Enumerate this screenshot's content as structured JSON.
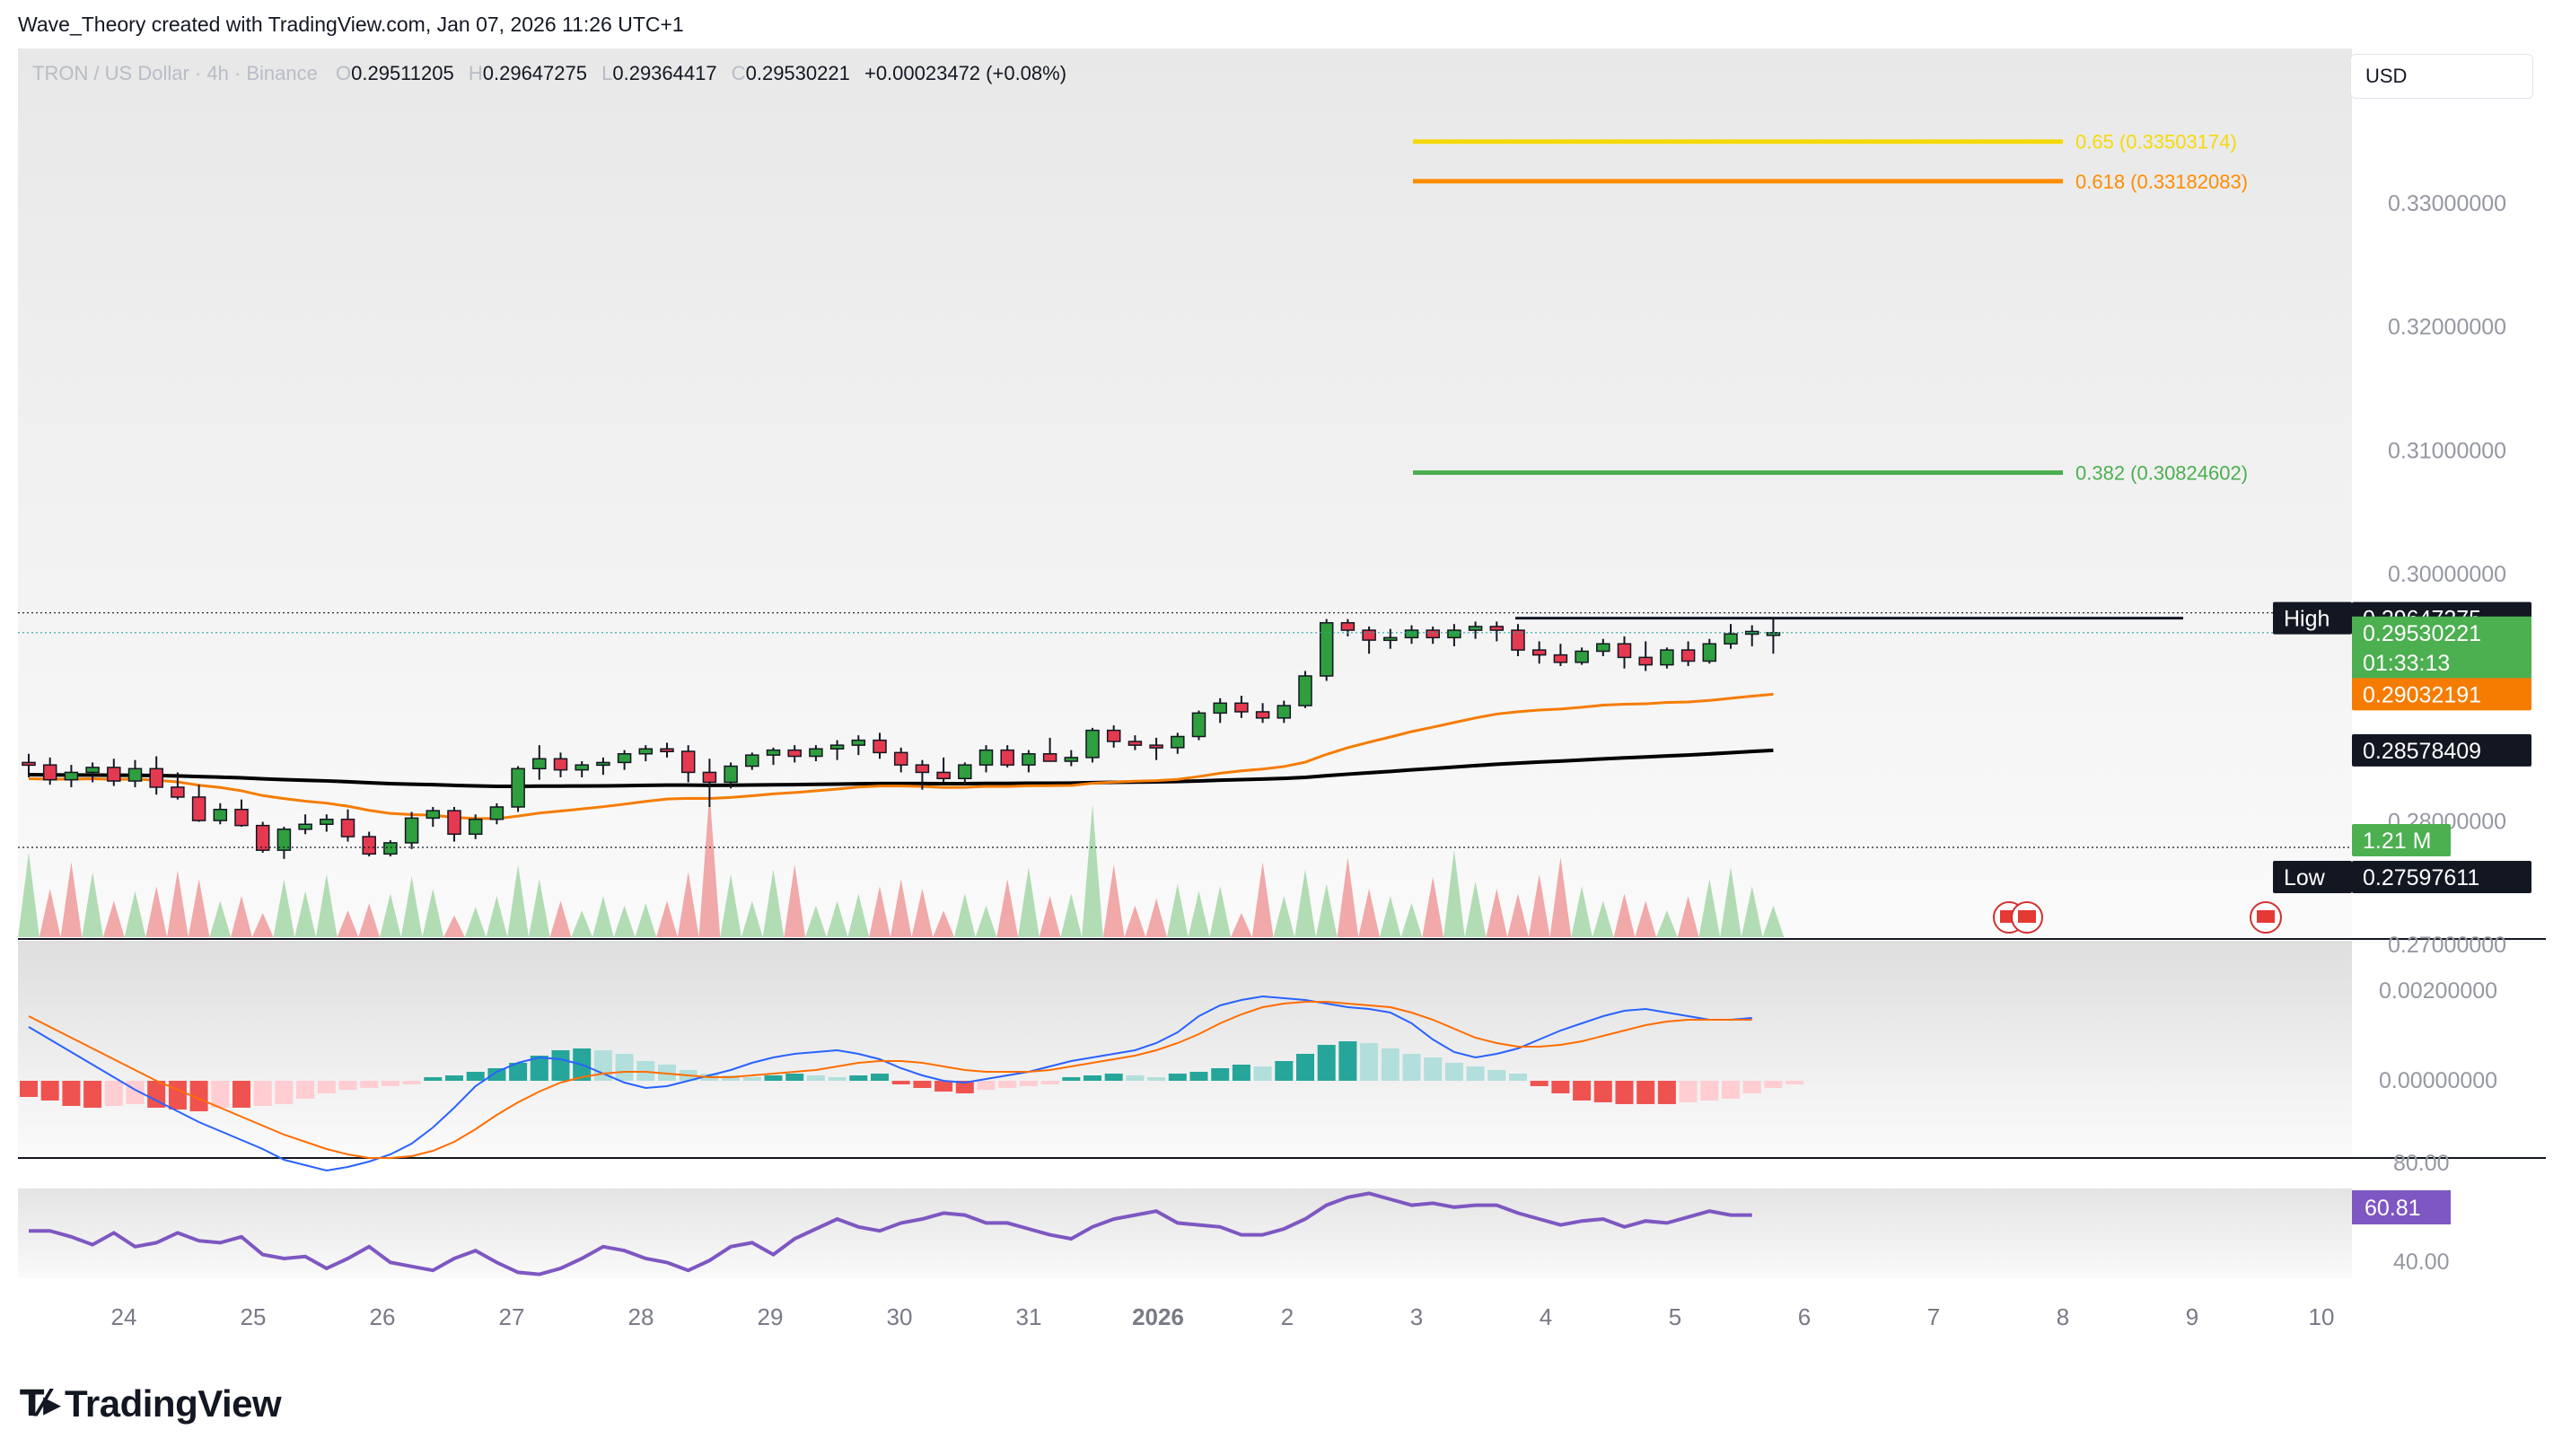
{
  "attribution": "Wave_Theory created with TradingView.com, Jan 07, 2026 11:26 UTC+1",
  "header": {
    "symbol": "TRON / US Dollar · 4h · Binance",
    "open_label": "O",
    "open": "0.29511205",
    "high_label": "H",
    "high": "0.29647275",
    "low_label": "L",
    "low": "0.29364417",
    "close_label": "C",
    "close": "0.29530221",
    "change": "+0.00023472 (+0.08%)"
  },
  "currency": "USD",
  "brand": {
    "logo_icon": "tradingview-logo-icon",
    "name": "TradingView"
  },
  "colors": {
    "up": "#26a69a",
    "down": "#ef5350",
    "candle_up": "#2e9e3e",
    "candle_down": "#e53950",
    "ema_fast": "#f57c00",
    "ema_slow": "#000000",
    "fib_382": "#4caf50",
    "fib_618": "#ff8c00",
    "fib_65": "#f5d90a",
    "macd": "#2962ff",
    "macd_signal": "#ff6d00",
    "rsi": "#7e57c2",
    "vol_up": "#a5d6a7",
    "vol_down": "#ef9a9a"
  },
  "price_scale": {
    "ticks": [
      "0.33000000",
      "0.32000000",
      "0.31000000",
      "0.30000000",
      "0.28000000",
      "0.27000000"
    ],
    "high_label": "High",
    "high_value": "0.29647275",
    "last_price": "0.29530221",
    "countdown": "01:33:13",
    "ema_fast_value": "0.29032191",
    "ema_slow_value": "0.28578409",
    "volume_value": "1.21 M",
    "low_label": "Low",
    "low_value": "0.27597611"
  },
  "fib_levels": [
    {
      "label": "0.382 (0.30824602)",
      "level": 0.30824602,
      "color": "#4caf50"
    },
    {
      "label": "0.618 (0.33182083)",
      "level": 0.33182083,
      "color": "#ff8c00"
    },
    {
      "label": "0.65 (0.33503174)",
      "level": 0.33503174,
      "color": "#f5d90a"
    }
  ],
  "macd_scale": {
    "ticks": [
      "0.00200000",
      "0.00000000"
    ]
  },
  "rsi_scale": {
    "ticks": [
      "80.00",
      "40.00"
    ],
    "value": "60.81"
  },
  "time_axis": {
    "labels": [
      "24",
      "25",
      "26",
      "27",
      "28",
      "29",
      "30",
      "31",
      "2026",
      "2",
      "3",
      "4",
      "5",
      "6",
      "7",
      "8",
      "9",
      "10"
    ]
  },
  "chart_data": {
    "type": "candlestick",
    "title": "TRON / US Dollar · 4h · Binance",
    "interval": "4h",
    "ylim": [
      0.2675,
      0.3375
    ],
    "candles": [
      {
        "o": 0.2848,
        "h": 0.2855,
        "l": 0.2836,
        "c": 0.2846
      },
      {
        "o": 0.2846,
        "h": 0.2852,
        "l": 0.283,
        "c": 0.2834
      },
      {
        "o": 0.2834,
        "h": 0.2846,
        "l": 0.2828,
        "c": 0.284
      },
      {
        "o": 0.284,
        "h": 0.2848,
        "l": 0.2832,
        "c": 0.2844
      },
      {
        "o": 0.2844,
        "h": 0.2851,
        "l": 0.2829,
        "c": 0.2833
      },
      {
        "o": 0.2833,
        "h": 0.285,
        "l": 0.2828,
        "c": 0.2843
      },
      {
        "o": 0.2843,
        "h": 0.2853,
        "l": 0.2822,
        "c": 0.2828
      },
      {
        "o": 0.2828,
        "h": 0.284,
        "l": 0.2818,
        "c": 0.282
      },
      {
        "o": 0.282,
        "h": 0.283,
        "l": 0.28,
        "c": 0.2801
      },
      {
        "o": 0.2801,
        "h": 0.2815,
        "l": 0.2798,
        "c": 0.281
      },
      {
        "o": 0.281,
        "h": 0.2818,
        "l": 0.2796,
        "c": 0.2797
      },
      {
        "o": 0.2797,
        "h": 0.28,
        "l": 0.2775,
        "c": 0.2777
      },
      {
        "o": 0.2777,
        "h": 0.2796,
        "l": 0.277,
        "c": 0.2794
      },
      {
        "o": 0.2794,
        "h": 0.2806,
        "l": 0.279,
        "c": 0.2798
      },
      {
        "o": 0.2798,
        "h": 0.2806,
        "l": 0.2792,
        "c": 0.2802
      },
      {
        "o": 0.2802,
        "h": 0.281,
        "l": 0.2784,
        "c": 0.2788
      },
      {
        "o": 0.2788,
        "h": 0.2792,
        "l": 0.2772,
        "c": 0.2774
      },
      {
        "o": 0.2774,
        "h": 0.2785,
        "l": 0.2772,
        "c": 0.2783
      },
      {
        "o": 0.2783,
        "h": 0.2808,
        "l": 0.2778,
        "c": 0.2803
      },
      {
        "o": 0.2803,
        "h": 0.2812,
        "l": 0.2796,
        "c": 0.2809
      },
      {
        "o": 0.2809,
        "h": 0.2812,
        "l": 0.2784,
        "c": 0.279
      },
      {
        "o": 0.279,
        "h": 0.2806,
        "l": 0.2786,
        "c": 0.2802
      },
      {
        "o": 0.2802,
        "h": 0.2815,
        "l": 0.2798,
        "c": 0.2812
      },
      {
        "o": 0.2812,
        "h": 0.2845,
        "l": 0.2808,
        "c": 0.2843
      },
      {
        "o": 0.2843,
        "h": 0.2862,
        "l": 0.2834,
        "c": 0.2851
      },
      {
        "o": 0.2851,
        "h": 0.2856,
        "l": 0.2836,
        "c": 0.2842
      },
      {
        "o": 0.2842,
        "h": 0.2849,
        "l": 0.2836,
        "c": 0.2846
      },
      {
        "o": 0.2846,
        "h": 0.2852,
        "l": 0.2838,
        "c": 0.2848
      },
      {
        "o": 0.2848,
        "h": 0.2858,
        "l": 0.2842,
        "c": 0.2855
      },
      {
        "o": 0.2855,
        "h": 0.2862,
        "l": 0.2849,
        "c": 0.2859
      },
      {
        "o": 0.2859,
        "h": 0.2864,
        "l": 0.2852,
        "c": 0.2857
      },
      {
        "o": 0.2857,
        "h": 0.2862,
        "l": 0.2832,
        "c": 0.284
      },
      {
        "o": 0.284,
        "h": 0.2851,
        "l": 0.2812,
        "c": 0.2832
      },
      {
        "o": 0.2832,
        "h": 0.2848,
        "l": 0.2827,
        "c": 0.2845
      },
      {
        "o": 0.2845,
        "h": 0.2856,
        "l": 0.2842,
        "c": 0.2854
      },
      {
        "o": 0.2854,
        "h": 0.286,
        "l": 0.2846,
        "c": 0.2858
      },
      {
        "o": 0.2858,
        "h": 0.2862,
        "l": 0.2848,
        "c": 0.2853
      },
      {
        "o": 0.2853,
        "h": 0.2862,
        "l": 0.2849,
        "c": 0.2859
      },
      {
        "o": 0.2859,
        "h": 0.2866,
        "l": 0.285,
        "c": 0.2862
      },
      {
        "o": 0.2862,
        "h": 0.287,
        "l": 0.2854,
        "c": 0.2866
      },
      {
        "o": 0.2866,
        "h": 0.2872,
        "l": 0.2851,
        "c": 0.2856
      },
      {
        "o": 0.2856,
        "h": 0.286,
        "l": 0.284,
        "c": 0.2846
      },
      {
        "o": 0.2846,
        "h": 0.285,
        "l": 0.2826,
        "c": 0.284
      },
      {
        "o": 0.284,
        "h": 0.2852,
        "l": 0.2832,
        "c": 0.2835
      },
      {
        "o": 0.2835,
        "h": 0.2848,
        "l": 0.283,
        "c": 0.2846
      },
      {
        "o": 0.2846,
        "h": 0.2862,
        "l": 0.284,
        "c": 0.2858
      },
      {
        "o": 0.2858,
        "h": 0.2862,
        "l": 0.2844,
        "c": 0.2846
      },
      {
        "o": 0.2846,
        "h": 0.2858,
        "l": 0.284,
        "c": 0.2855
      },
      {
        "o": 0.2855,
        "h": 0.2868,
        "l": 0.285,
        "c": 0.2849
      },
      {
        "o": 0.2849,
        "h": 0.2858,
        "l": 0.2845,
        "c": 0.2852
      },
      {
        "o": 0.2852,
        "h": 0.2876,
        "l": 0.2848,
        "c": 0.2874
      },
      {
        "o": 0.2874,
        "h": 0.2878,
        "l": 0.286,
        "c": 0.2865
      },
      {
        "o": 0.2865,
        "h": 0.287,
        "l": 0.2858,
        "c": 0.2862
      },
      {
        "o": 0.2862,
        "h": 0.2868,
        "l": 0.285,
        "c": 0.286
      },
      {
        "o": 0.286,
        "h": 0.2872,
        "l": 0.2855,
        "c": 0.2869
      },
      {
        "o": 0.2869,
        "h": 0.289,
        "l": 0.2866,
        "c": 0.2888
      },
      {
        "o": 0.2888,
        "h": 0.29,
        "l": 0.288,
        "c": 0.2896
      },
      {
        "o": 0.2896,
        "h": 0.2902,
        "l": 0.2884,
        "c": 0.2889
      },
      {
        "o": 0.2889,
        "h": 0.2896,
        "l": 0.288,
        "c": 0.2884
      },
      {
        "o": 0.2884,
        "h": 0.2898,
        "l": 0.288,
        "c": 0.2894
      },
      {
        "o": 0.2894,
        "h": 0.2922,
        "l": 0.2892,
        "c": 0.2918
      },
      {
        "o": 0.2918,
        "h": 0.2964,
        "l": 0.2914,
        "c": 0.2961
      },
      {
        "o": 0.2961,
        "h": 0.2964,
        "l": 0.295,
        "c": 0.2955
      },
      {
        "o": 0.2955,
        "h": 0.2958,
        "l": 0.2936,
        "c": 0.2947
      },
      {
        "o": 0.2947,
        "h": 0.2956,
        "l": 0.294,
        "c": 0.2949
      },
      {
        "o": 0.2949,
        "h": 0.2959,
        "l": 0.2944,
        "c": 0.2955
      },
      {
        "o": 0.2955,
        "h": 0.2958,
        "l": 0.2944,
        "c": 0.2949
      },
      {
        "o": 0.2949,
        "h": 0.296,
        "l": 0.2942,
        "c": 0.2955
      },
      {
        "o": 0.2955,
        "h": 0.2962,
        "l": 0.2948,
        "c": 0.2958
      },
      {
        "o": 0.2958,
        "h": 0.2962,
        "l": 0.2946,
        "c": 0.2955
      },
      {
        "o": 0.2955,
        "h": 0.296,
        "l": 0.2934,
        "c": 0.2939
      },
      {
        "o": 0.2939,
        "h": 0.2946,
        "l": 0.2928,
        "c": 0.2935
      },
      {
        "o": 0.2935,
        "h": 0.2944,
        "l": 0.2926,
        "c": 0.2929
      },
      {
        "o": 0.2929,
        "h": 0.2941,
        "l": 0.2927,
        "c": 0.2938
      },
      {
        "o": 0.2938,
        "h": 0.2948,
        "l": 0.2934,
        "c": 0.2944
      },
      {
        "o": 0.2944,
        "h": 0.295,
        "l": 0.2924,
        "c": 0.2933
      },
      {
        "o": 0.2933,
        "h": 0.2946,
        "l": 0.2922,
        "c": 0.2927
      },
      {
        "o": 0.2927,
        "h": 0.2941,
        "l": 0.2924,
        "c": 0.2939
      },
      {
        "o": 0.2939,
        "h": 0.2946,
        "l": 0.2926,
        "c": 0.293
      },
      {
        "o": 0.293,
        "h": 0.2948,
        "l": 0.2928,
        "c": 0.2944
      },
      {
        "o": 0.2944,
        "h": 0.296,
        "l": 0.294,
        "c": 0.2952
      },
      {
        "o": 0.2952,
        "h": 0.2959,
        "l": 0.2942,
        "c": 0.2954
      },
      {
        "o": 0.2951,
        "h": 0.2965,
        "l": 0.2936,
        "c": 0.2953
      }
    ],
    "ema_fast": {
      "name": "0.29032191",
      "value": 0.29032191
    },
    "ema_slow": {
      "name": "0.28578409",
      "value": 0.28578409
    },
    "volume": {
      "last": "1.21 M"
    },
    "rsi": {
      "last": 60.81,
      "range": [
        40,
        80
      ]
    },
    "high": 0.29647275,
    "low": 0.27597611
  }
}
